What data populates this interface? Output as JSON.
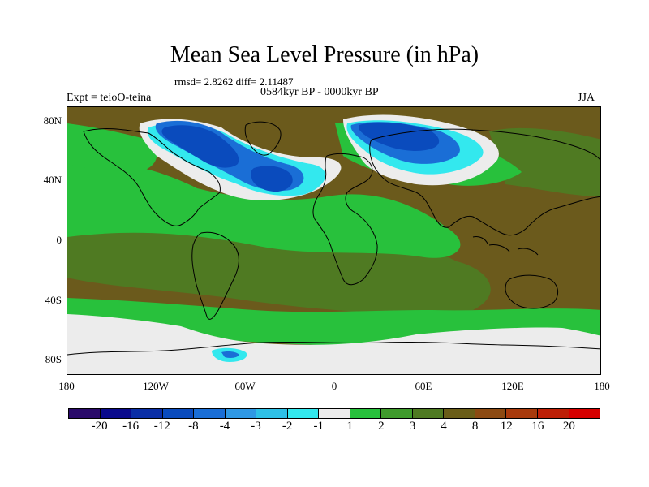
{
  "header": {
    "title": "Mean Sea Level Pressure (in hPa)",
    "stats": "rmsd= 2.8262 diff= 2.11487",
    "period": "0584kyr BP - 0000kyr BP",
    "experiment": "Expt = teioO-teina",
    "season": "JJA"
  },
  "axes": {
    "lat_labels": [
      "80N",
      "40N",
      "0",
      "40S",
      "80S"
    ],
    "lon_labels": [
      "180",
      "120W",
      "60W",
      "0",
      "60E",
      "120E",
      "180"
    ]
  },
  "legend": {
    "colors": [
      "#2a0a6a",
      "#0a0a8c",
      "#0a2ea6",
      "#0a4bbd",
      "#1a6ed6",
      "#2f98e4",
      "#2ec0e6",
      "#33e8ee",
      "#ececec",
      "#28c13c",
      "#3f9b2c",
      "#4f7a22",
      "#6a5d18",
      "#8c4a12",
      "#a83a0c",
      "#bd1f06",
      "#d60000"
    ],
    "labels": [
      "-20",
      "-16",
      "-12",
      "-8",
      "-4",
      "-3",
      "-2",
      "-1",
      "1",
      "2",
      "3",
      "4",
      "8",
      "12",
      "16",
      "20"
    ]
  },
  "map_regions": [
    {
      "name": "north-atlantic-low",
      "level": "-8",
      "color": "#0a4bbd"
    },
    {
      "name": "eurasia-low",
      "level": "-8",
      "color": "#0a4bbd"
    },
    {
      "name": "antarctic-high-plateau",
      "level": "1",
      "color": "#ececec"
    },
    {
      "name": "southern-ocean-band",
      "level": "2",
      "color": "#28c13c"
    }
  ]
}
